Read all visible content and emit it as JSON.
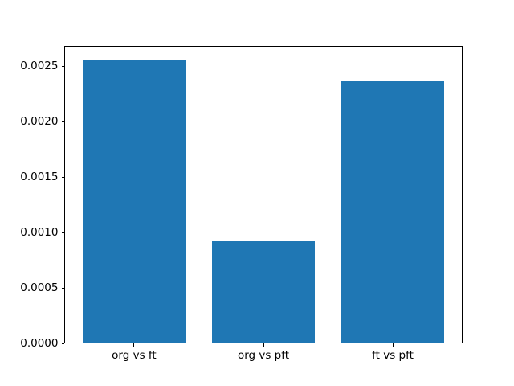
{
  "window": {
    "background": "#ffffff"
  },
  "chart_data": {
    "type": "bar",
    "title": "",
    "xlabel": "",
    "ylabel": "",
    "categories": [
      "org vs ft",
      "org vs pft",
      "ft vs pft"
    ],
    "values": [
      0.00255,
      0.00092,
      0.00236
    ],
    "bar_color": "#1f77b4",
    "bar_width": 0.8,
    "xlim": [
      -0.54,
      2.54
    ],
    "ylim": [
      0,
      0.0026775
    ],
    "yticks": [
      0.0,
      0.0005,
      0.001,
      0.0015,
      0.002,
      0.0025
    ],
    "ytick_labels": [
      "0.0000",
      "0.0005",
      "0.0010",
      "0.0015",
      "0.0020",
      "0.0025"
    ],
    "grid": false,
    "legend": false,
    "axis_color": "#000000",
    "tick_label_color": "#000000"
  }
}
